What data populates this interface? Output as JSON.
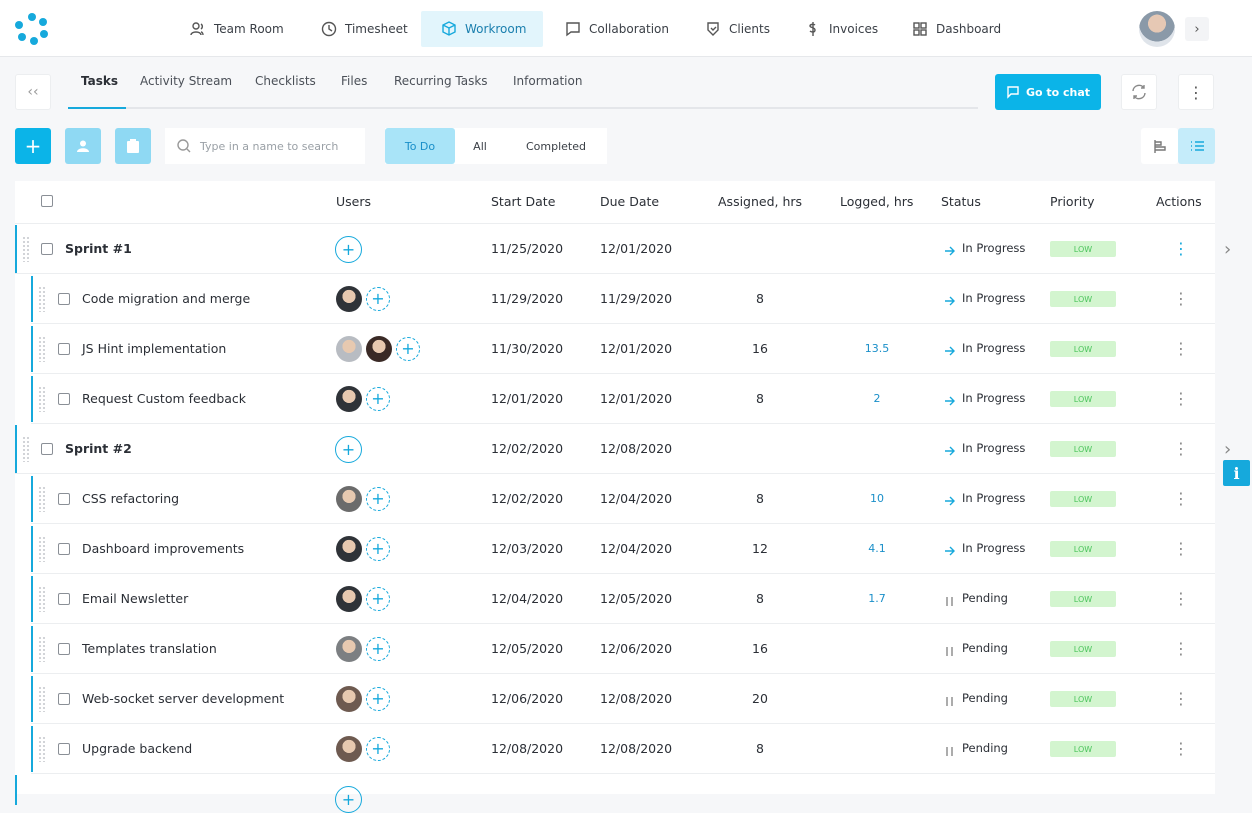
{
  "nav": {
    "items": [
      "Team Room",
      "Timesheet",
      "Workroom",
      "Collaboration",
      "Clients",
      "Invoices",
      "Dashboard"
    ],
    "active": 2
  },
  "tabs": {
    "items": [
      "Tasks",
      "Activity Stream",
      "Checklists",
      "Files",
      "Recurring Tasks",
      "Information"
    ],
    "active": 0
  },
  "chat_button": "Go to chat",
  "search_placeholder": "Type in a name to search",
  "filter": {
    "items": [
      "To Do",
      "All",
      "Completed"
    ],
    "active": 0
  },
  "table": {
    "headers": [
      "Users",
      "Start Date",
      "Due Date",
      "Assigned, hrs",
      "Logged, hrs",
      "Status",
      "Priority",
      "Actions"
    ],
    "sprints": [
      {
        "name": "Sprint #1",
        "start": "11/25/2020",
        "due": "12/01/2020",
        "status": "In Progress",
        "status_icon": "arrow",
        "priority": "LOW",
        "tasks": [
          {
            "name": "Code migration and merge",
            "avatars": [
              "#2f3338"
            ],
            "start": "11/29/2020",
            "due": "11/29/2020",
            "assigned": 8,
            "status": "In Progress",
            "status_icon": "arrow",
            "priority": "LOW"
          },
          {
            "name": "JS Hint implementation",
            "avatars": [
              "#b8bcc2",
              "#3a2a26"
            ],
            "start": "11/30/2020",
            "due": "12/01/2020",
            "assigned": 16,
            "logged": 13.5,
            "status": "In Progress",
            "status_icon": "arrow",
            "priority": "LOW"
          },
          {
            "name": "Request Custom feedback",
            "avatars": [
              "#2f3338"
            ],
            "start": "12/01/2020",
            "due": "12/01/2020",
            "assigned": 8,
            "logged": 2,
            "status": "In Progress",
            "status_icon": "arrow",
            "priority": "LOW"
          }
        ]
      },
      {
        "name": "Sprint #2",
        "start": "12/02/2020",
        "due": "12/08/2020",
        "status": "In Progress",
        "status_icon": "arrow",
        "priority": "LOW",
        "tasks": [
          {
            "name": "CSS refactoring",
            "avatars": [
              "#6b6b6b"
            ],
            "start": "12/02/2020",
            "due": "12/04/2020",
            "assigned": 8,
            "logged": 10,
            "status": "In Progress",
            "status_icon": "arrow",
            "priority": "LOW"
          },
          {
            "name": "Dashboard improvements",
            "avatars": [
              "#2f3338"
            ],
            "start": "12/03/2020",
            "due": "12/04/2020",
            "assigned": 12,
            "logged": 4.1,
            "status": "In Progress",
            "status_icon": "arrow",
            "priority": "LOW"
          },
          {
            "name": "Email Newsletter",
            "avatars": [
              "#2f3338"
            ],
            "start": "12/04/2020",
            "due": "12/05/2020",
            "assigned": 8,
            "logged": 1.7,
            "status": "Pending",
            "status_icon": "pause",
            "priority": "LOW"
          },
          {
            "name": "Templates translation",
            "avatars": [
              "#7c7f82"
            ],
            "start": "12/05/2020",
            "due": "12/06/2020",
            "assigned": 16,
            "status": "Pending",
            "status_icon": "pause",
            "priority": "LOW"
          },
          {
            "name": "Web-socket server development",
            "avatars": [
              "#6e5a50"
            ],
            "start": "12/06/2020",
            "due": "12/08/2020",
            "assigned": 20,
            "status": "Pending",
            "status_icon": "pause",
            "priority": "LOW"
          },
          {
            "name": "Upgrade backend",
            "avatars": [
              "#6e5a50"
            ],
            "start": "12/08/2020",
            "due": "12/08/2020",
            "assigned": 8,
            "status": "Pending",
            "status_icon": "pause",
            "priority": "LOW"
          }
        ]
      }
    ]
  }
}
